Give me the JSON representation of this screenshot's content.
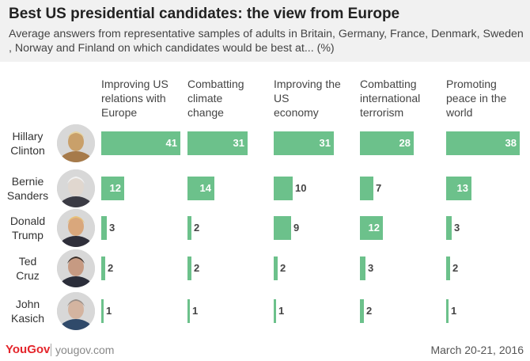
{
  "header": {
    "title": "Best US presidential candidates: the view from Europe",
    "subtitle": "Average answers from representative samples of adults in Britain, Germany, France, Denmark, Sweden , Norway and Finland on which candidates would be best at... (%)"
  },
  "footer": {
    "brand": "YouGov",
    "site": "yougov.com",
    "date": "March 20-21, 2016"
  },
  "colors": {
    "bar": "#6cc18b",
    "header_bg": "#f1f1f1",
    "brand": "#e4252b"
  },
  "chart_data": {
    "type": "bar",
    "orientation": "horizontal",
    "title": "Best US presidential candidates: the view from Europe",
    "unit": "%",
    "categories": [
      "Hillary Clinton",
      "Bernie Sanders",
      "Donald Trump",
      "Ted Cruz",
      "John Kasich"
    ],
    "category_labels": [
      [
        "Hillary",
        "Clinton"
      ],
      [
        "Bernie",
        "Sanders"
      ],
      [
        "Donald",
        "Trump"
      ],
      [
        "Ted",
        "Cruz"
      ],
      [
        "John",
        "Kasich"
      ]
    ],
    "series": [
      {
        "name": "Improving US relations with Europe",
        "label_lines": [
          "Improving US",
          "relations with",
          "Europe"
        ],
        "values": [
          41,
          12,
          3,
          2,
          1
        ]
      },
      {
        "name": "Combatting climate change",
        "label_lines": [
          "Combatting",
          "climate",
          "change"
        ],
        "values": [
          31,
          14,
          2,
          2,
          1
        ]
      },
      {
        "name": "Improving the US economy",
        "label_lines": [
          "Improving the",
          "US",
          "economy"
        ],
        "values": [
          31,
          10,
          9,
          2,
          1
        ]
      },
      {
        "name": "Combatting international terrorism",
        "label_lines": [
          "Combatting",
          "international",
          "terrorism"
        ],
        "values": [
          28,
          7,
          12,
          3,
          2
        ]
      },
      {
        "name": "Promoting peace in the world",
        "label_lines": [
          "Promoting",
          "peace in the",
          "world"
        ],
        "values": [
          38,
          13,
          3,
          2,
          1
        ]
      }
    ]
  }
}
